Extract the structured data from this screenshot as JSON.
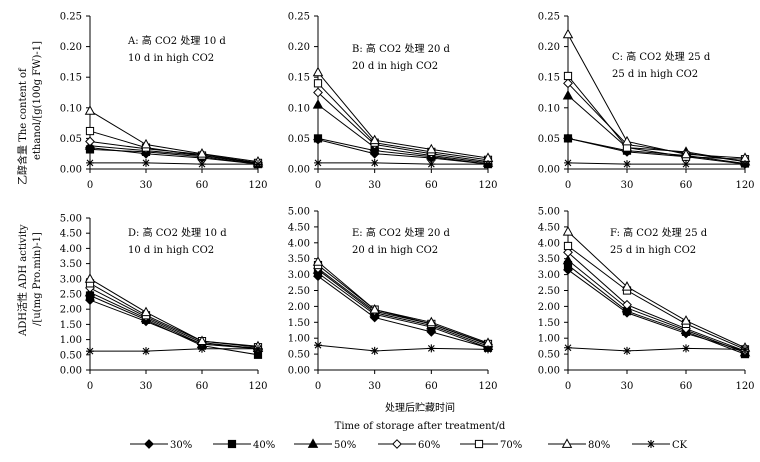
{
  "figure": {
    "x_axis_label": "Time of storage after treatment/d",
    "x_axis_label_cn": "处理后贮藏时间",
    "ylabel_top_cn": "乙醇含量 The content of",
    "ylabel_top_en": "ethanol/[g(100g FW)-1]",
    "ylabel_bottom_cn": "ADH活性 ADH activity",
    "ylabel_bottom_en": "/[u(mg Pro.min)-1]"
  },
  "legend": {
    "items": [
      {
        "label": "30%",
        "marker": "diamond-filled"
      },
      {
        "label": "40%",
        "marker": "square-filled"
      },
      {
        "label": "50%",
        "marker": "triangle-filled"
      },
      {
        "label": "60%",
        "marker": "diamond-open"
      },
      {
        "label": "70%",
        "marker": "square-open"
      },
      {
        "label": "80%",
        "marker": "triangle-open"
      },
      {
        "label": "CK",
        "marker": "asterisk"
      }
    ]
  },
  "chart_data": [
    {
      "type": "line",
      "panel": "A",
      "title_cn": "A: 高 CO2 处理 10 d",
      "title_en": "10 d in high CO2",
      "categories": [
        "0",
        "30",
        "60",
        "120"
      ],
      "ylim": [
        0,
        0.25
      ],
      "yticks": [
        "0.00",
        "0.05",
        "0.10",
        "0.15",
        "0.20",
        "0.25"
      ],
      "series": [
        {
          "name": "30%",
          "values": [
            0.035,
            0.025,
            0.018,
            0.008
          ]
        },
        {
          "name": "40%",
          "values": [
            0.032,
            0.028,
            0.02,
            0.008
          ]
        },
        {
          "name": "50%",
          "values": [
            0.038,
            0.03,
            0.022,
            0.009
          ]
        },
        {
          "name": "60%",
          "values": [
            0.045,
            0.033,
            0.024,
            0.01
          ]
        },
        {
          "name": "70%",
          "values": [
            0.062,
            0.035,
            0.022,
            0.01
          ]
        },
        {
          "name": "80%",
          "values": [
            0.095,
            0.04,
            0.025,
            0.012
          ]
        },
        {
          "name": "CK",
          "values": [
            0.01,
            0.01,
            0.008,
            0.008
          ]
        }
      ]
    },
    {
      "type": "line",
      "panel": "B",
      "title_cn": "B: 高 CO2 处理 20 d",
      "title_en": "20 d in high CO2",
      "categories": [
        "0",
        "30",
        "60",
        "120"
      ],
      "ylim": [
        0,
        0.25
      ],
      "yticks": [
        "0.00",
        "0.05",
        "0.10",
        "0.15",
        "0.20",
        "0.25"
      ],
      "series": [
        {
          "name": "30%",
          "values": [
            0.048,
            0.025,
            0.018,
            0.008
          ]
        },
        {
          "name": "40%",
          "values": [
            0.05,
            0.03,
            0.02,
            0.008
          ]
        },
        {
          "name": "50%",
          "values": [
            0.105,
            0.035,
            0.022,
            0.01
          ]
        },
        {
          "name": "60%",
          "values": [
            0.125,
            0.04,
            0.025,
            0.012
          ]
        },
        {
          "name": "70%",
          "values": [
            0.14,
            0.043,
            0.028,
            0.015
          ]
        },
        {
          "name": "80%",
          "values": [
            0.158,
            0.047,
            0.032,
            0.018
          ]
        },
        {
          "name": "CK",
          "values": [
            0.01,
            0.01,
            0.008,
            0.008
          ]
        }
      ]
    },
    {
      "type": "line",
      "panel": "C",
      "title_cn": "C: 高 CO2 处理 25 d",
      "title_en": "25 d in high CO2",
      "categories": [
        "0",
        "30",
        "60",
        "120"
      ],
      "ylim": [
        0,
        0.25
      ],
      "yticks": [
        "0.00",
        "0.05",
        "0.10",
        "0.15",
        "0.20",
        "0.25"
      ],
      "series": [
        {
          "name": "30%",
          "values": [
            0.05,
            0.028,
            0.02,
            0.008
          ]
        },
        {
          "name": "40%",
          "values": [
            0.05,
            0.03,
            0.022,
            0.009
          ]
        },
        {
          "name": "50%",
          "values": [
            0.12,
            0.035,
            0.028,
            0.012
          ]
        },
        {
          "name": "60%",
          "values": [
            0.14,
            0.04,
            0.026,
            0.012
          ]
        },
        {
          "name": "70%",
          "values": [
            0.152,
            0.035,
            0.02,
            0.016
          ]
        },
        {
          "name": "80%",
          "values": [
            0.22,
            0.045,
            0.024,
            0.018
          ]
        },
        {
          "name": "CK",
          "values": [
            0.01,
            0.008,
            0.008,
            0.008
          ]
        }
      ]
    },
    {
      "type": "line",
      "panel": "D",
      "title_cn": "D: 高 CO2 处理 10 d",
      "title_en": "10 d in high CO2",
      "categories": [
        "0",
        "30",
        "60",
        "120"
      ],
      "ylim": [
        0,
        5
      ],
      "yticks": [
        "0.00",
        "0.50",
        "1.00",
        "1.50",
        "2.00",
        "2.50",
        "3.00",
        "3.50",
        "4.00",
        "4.50",
        "5.00"
      ],
      "series": [
        {
          "name": "30%",
          "values": [
            2.3,
            1.6,
            0.85,
            0.7
          ]
        },
        {
          "name": "40%",
          "values": [
            2.45,
            1.65,
            0.8,
            0.5
          ]
        },
        {
          "name": "50%",
          "values": [
            2.55,
            1.7,
            0.85,
            0.72
          ]
        },
        {
          "name": "60%",
          "values": [
            2.7,
            1.75,
            0.9,
            0.7
          ]
        },
        {
          "name": "70%",
          "values": [
            2.85,
            1.8,
            0.95,
            0.75
          ]
        },
        {
          "name": "80%",
          "values": [
            3.0,
            1.9,
            0.95,
            0.78
          ]
        },
        {
          "name": "CK",
          "values": [
            0.62,
            0.62,
            0.7,
            0.7
          ]
        }
      ]
    },
    {
      "type": "line",
      "panel": "E",
      "title_cn": "E: 高 CO2 处理 20 d",
      "title_en": "20 d in high CO2",
      "categories": [
        "0",
        "30",
        "60",
        "120"
      ],
      "ylim": [
        0,
        5
      ],
      "yticks": [
        "0.00",
        "0.50",
        "1.00",
        "1.50",
        "2.00",
        "2.50",
        "3.00",
        "3.50",
        "4.00",
        "4.50",
        "5.00"
      ],
      "series": [
        {
          "name": "30%",
          "values": [
            2.95,
            1.65,
            1.2,
            0.7
          ]
        },
        {
          "name": "40%",
          "values": [
            3.05,
            1.75,
            1.35,
            0.7
          ]
        },
        {
          "name": "50%",
          "values": [
            3.15,
            1.8,
            1.4,
            0.75
          ]
        },
        {
          "name": "60%",
          "values": [
            3.2,
            1.85,
            1.45,
            0.8
          ]
        },
        {
          "name": "70%",
          "values": [
            3.3,
            1.9,
            1.45,
            0.82
          ]
        },
        {
          "name": "80%",
          "values": [
            3.4,
            1.9,
            1.5,
            0.85
          ]
        },
        {
          "name": "CK",
          "values": [
            0.78,
            0.6,
            0.68,
            0.65
          ]
        }
      ]
    },
    {
      "type": "line",
      "panel": "F",
      "title_cn": "F: 高 CO2 处理 25 d",
      "title_en": "25 d in high CO2",
      "categories": [
        "0",
        "30",
        "60",
        "120"
      ],
      "ylim": [
        0,
        5
      ],
      "yticks": [
        "0.00",
        "0.50",
        "1.00",
        "1.50",
        "2.00",
        "2.50",
        "3.00",
        "3.50",
        "4.00",
        "4.50",
        "5.00"
      ],
      "series": [
        {
          "name": "30%",
          "values": [
            3.15,
            1.8,
            1.15,
            0.6
          ]
        },
        {
          "name": "40%",
          "values": [
            3.3,
            1.85,
            1.2,
            0.5
          ]
        },
        {
          "name": "50%",
          "values": [
            3.45,
            1.95,
            1.25,
            0.55
          ]
        },
        {
          "name": "60%",
          "values": [
            3.7,
            2.05,
            1.3,
            0.6
          ]
        },
        {
          "name": "70%",
          "values": [
            3.9,
            2.5,
            1.45,
            0.65
          ]
        },
        {
          "name": "80%",
          "values": [
            4.35,
            2.62,
            1.55,
            0.7
          ]
        },
        {
          "name": "CK",
          "values": [
            0.7,
            0.6,
            0.68,
            0.65
          ]
        }
      ]
    }
  ]
}
